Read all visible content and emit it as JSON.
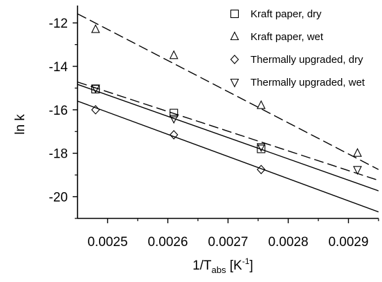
{
  "chart_data": {
    "type": "scatter",
    "title": "",
    "xlabel": {
      "main": "1/T",
      "subscript": "abs",
      "unit_open": " [K",
      "unit_sup": "-1",
      "unit_close": "]"
    },
    "ylabel": "ln k",
    "xlim": [
      0.00245,
      0.00295
    ],
    "ylim": [
      -21,
      -11.2
    ],
    "x_ticks": [
      {
        "value": 0.0025,
        "label": "0.0025"
      },
      {
        "value": 0.0026,
        "label": "0.0026"
      },
      {
        "value": 0.0027,
        "label": "0.0027"
      },
      {
        "value": 0.0028,
        "label": "0.0028"
      },
      {
        "value": 0.0029,
        "label": "0.0029"
      }
    ],
    "y_ticks": [
      {
        "value": -12,
        "label": "-12"
      },
      {
        "value": -14,
        "label": "-14"
      },
      {
        "value": -16,
        "label": "-16"
      },
      {
        "value": -18,
        "label": "-18"
      },
      {
        "value": -20,
        "label": "-20"
      }
    ],
    "grid": false,
    "legend_position": "top-right",
    "series": [
      {
        "name": "Kraft paper, dry",
        "marker": "square",
        "line_style": "solid",
        "x": [
          0.00248,
          0.00261,
          0.002755
        ],
        "y": [
          -15.05,
          -16.15,
          -17.8
        ],
        "fit_line": [
          [
            0.00245,
            -14.83
          ],
          [
            0.00295,
            -19.73
          ]
        ]
      },
      {
        "name": "Kraft paper, wet",
        "marker": "triangle-up",
        "line_style": "dashed",
        "x": [
          0.00248,
          0.00261,
          0.002755,
          0.002915
        ],
        "y": [
          -12.3,
          -13.5,
          -15.8,
          -18.0
        ],
        "fit_line": [
          [
            0.00245,
            -11.58
          ],
          [
            0.00295,
            -18.75
          ]
        ]
      },
      {
        "name": "Thermally upgraded, dry",
        "marker": "diamond",
        "line_style": "solid",
        "x": [
          0.00248,
          0.00261,
          0.002755
        ],
        "y": [
          -16.0,
          -17.15,
          -18.75
        ],
        "fit_line": [
          [
            0.00245,
            -15.6
          ],
          [
            0.00295,
            -20.7
          ]
        ]
      },
      {
        "name": "Thermally upgraded, wet",
        "marker": "triangle-down",
        "line_style": "dashed",
        "x": [
          0.00248,
          0.00261,
          0.002755,
          0.002915
        ],
        "y": [
          -15.0,
          -16.4,
          -17.7,
          -18.75
        ],
        "fit_line": [
          [
            0.00245,
            -14.72
          ],
          [
            0.00295,
            -19.25
          ]
        ]
      }
    ]
  }
}
